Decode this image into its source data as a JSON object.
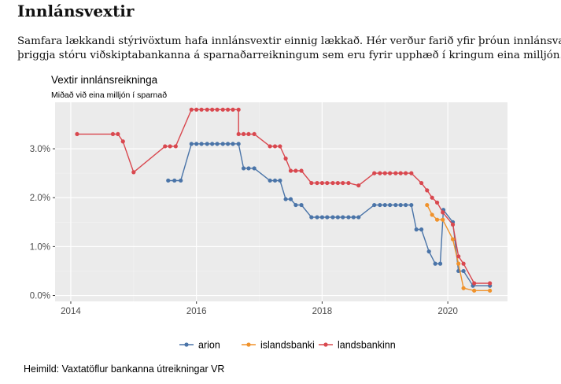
{
  "page": {
    "heading": "Innlánsvextir",
    "intro_line1": "Samfara lækkandi stýrivöxtum hafa innlánsvextir einnig lækkað.  Hér verður farið yfir þróun innlánsvaxta",
    "intro_line2": "þriggja stóru viðskiptabankanna á sparnaðarreikningum sem eru fyrir upphæð í kringum eina milljón.",
    "source": "Heimild: Vaxtatöflur bankanna útreikningar VR"
  },
  "colors": {
    "arion": "#4a74a8",
    "islandsbanki": "#f0922b",
    "landsbankinn": "#d9484f",
    "panel": "#ebebeb",
    "grid_major": "#ffffff",
    "grid_minor": "#f4f4f4"
  },
  "chart_data": {
    "type": "line",
    "title": "Vextir innlánsreikninga",
    "subtitle": "Miðað við eina milljón í sparnað",
    "xlabel": "",
    "ylabel": "",
    "xlim": [
      2013.75,
      2020.95
    ],
    "ylim": [
      -0.12,
      3.95
    ],
    "x_ticks": [
      2014,
      2016,
      2018,
      2020
    ],
    "x_tick_labels": [
      "2014",
      "2016",
      "2018",
      "2020"
    ],
    "y_ticks": [
      0,
      1,
      2,
      3
    ],
    "y_tick_labels": [
      "0.0%",
      "1.0%",
      "2.0%",
      "3.0%"
    ],
    "grid": true,
    "legend_position": "bottom",
    "series": [
      {
        "name": "arion",
        "color_key": "arion",
        "points": [
          [
            2015.55,
            2.35
          ],
          [
            2015.65,
            2.35
          ],
          [
            2015.75,
            2.35
          ],
          [
            2015.92,
            3.1
          ],
          [
            2016.0,
            3.1
          ],
          [
            2016.08,
            3.1
          ],
          [
            2016.17,
            3.1
          ],
          [
            2016.25,
            3.1
          ],
          [
            2016.33,
            3.1
          ],
          [
            2016.42,
            3.1
          ],
          [
            2016.5,
            3.1
          ],
          [
            2016.58,
            3.1
          ],
          [
            2016.67,
            3.1
          ],
          [
            2016.75,
            2.6
          ],
          [
            2016.83,
            2.6
          ],
          [
            2016.92,
            2.6
          ],
          [
            2017.17,
            2.35
          ],
          [
            2017.25,
            2.35
          ],
          [
            2017.33,
            2.35
          ],
          [
            2017.42,
            1.97
          ],
          [
            2017.5,
            1.97
          ],
          [
            2017.58,
            1.85
          ],
          [
            2017.67,
            1.85
          ],
          [
            2017.83,
            1.6
          ],
          [
            2017.92,
            1.6
          ],
          [
            2018.0,
            1.6
          ],
          [
            2018.08,
            1.6
          ],
          [
            2018.17,
            1.6
          ],
          [
            2018.25,
            1.6
          ],
          [
            2018.33,
            1.6
          ],
          [
            2018.42,
            1.6
          ],
          [
            2018.5,
            1.6
          ],
          [
            2018.58,
            1.6
          ],
          [
            2018.83,
            1.85
          ],
          [
            2018.92,
            1.85
          ],
          [
            2019.0,
            1.85
          ],
          [
            2019.08,
            1.85
          ],
          [
            2019.17,
            1.85
          ],
          [
            2019.25,
            1.85
          ],
          [
            2019.33,
            1.85
          ],
          [
            2019.42,
            1.85
          ],
          [
            2019.5,
            1.35
          ],
          [
            2019.58,
            1.35
          ],
          [
            2019.7,
            0.9
          ],
          [
            2019.8,
            0.65
          ],
          [
            2019.88,
            0.65
          ],
          [
            2019.93,
            1.75
          ],
          [
            2020.08,
            1.5
          ],
          [
            2020.17,
            0.5
          ],
          [
            2020.25,
            0.5
          ],
          [
            2020.4,
            0.2
          ],
          [
            2020.67,
            0.2
          ]
        ]
      },
      {
        "name": "islandsbanki",
        "color_key": "islandsbanki",
        "points": [
          [
            2019.67,
            1.85
          ],
          [
            2019.75,
            1.65
          ],
          [
            2019.83,
            1.55
          ],
          [
            2019.92,
            1.55
          ],
          [
            2020.08,
            1.15
          ],
          [
            2020.17,
            0.65
          ],
          [
            2020.25,
            0.15
          ],
          [
            2020.42,
            0.1
          ],
          [
            2020.67,
            0.1
          ]
        ]
      },
      {
        "name": "landsbankinn",
        "color_key": "landsbankinn",
        "points": [
          [
            2014.1,
            3.3
          ],
          [
            2014.67,
            3.3
          ],
          [
            2014.75,
            3.3
          ],
          [
            2014.83,
            3.15
          ],
          [
            2015.0,
            2.52
          ],
          [
            2015.5,
            3.05
          ],
          [
            2015.58,
            3.05
          ],
          [
            2015.67,
            3.05
          ],
          [
            2015.92,
            3.8
          ],
          [
            2016.0,
            3.8
          ],
          [
            2016.08,
            3.8
          ],
          [
            2016.17,
            3.8
          ],
          [
            2016.25,
            3.8
          ],
          [
            2016.33,
            3.8
          ],
          [
            2016.42,
            3.8
          ],
          [
            2016.5,
            3.8
          ],
          [
            2016.58,
            3.8
          ],
          [
            2016.67,
            3.8
          ],
          [
            2016.67,
            3.3
          ],
          [
            2016.75,
            3.3
          ],
          [
            2016.83,
            3.3
          ],
          [
            2016.92,
            3.3
          ],
          [
            2017.17,
            3.05
          ],
          [
            2017.25,
            3.05
          ],
          [
            2017.33,
            3.05
          ],
          [
            2017.42,
            2.8
          ],
          [
            2017.5,
            2.55
          ],
          [
            2017.58,
            2.55
          ],
          [
            2017.67,
            2.55
          ],
          [
            2017.83,
            2.3
          ],
          [
            2017.92,
            2.3
          ],
          [
            2018.0,
            2.3
          ],
          [
            2018.08,
            2.3
          ],
          [
            2018.17,
            2.3
          ],
          [
            2018.25,
            2.3
          ],
          [
            2018.33,
            2.3
          ],
          [
            2018.42,
            2.3
          ],
          [
            2018.58,
            2.25
          ],
          [
            2018.83,
            2.5
          ],
          [
            2018.92,
            2.5
          ],
          [
            2019.0,
            2.5
          ],
          [
            2019.08,
            2.5
          ],
          [
            2019.17,
            2.5
          ],
          [
            2019.25,
            2.5
          ],
          [
            2019.33,
            2.5
          ],
          [
            2019.42,
            2.5
          ],
          [
            2019.58,
            2.3
          ],
          [
            2019.67,
            2.15
          ],
          [
            2019.75,
            2.0
          ],
          [
            2019.83,
            1.9
          ],
          [
            2019.92,
            1.7
          ],
          [
            2020.08,
            1.45
          ],
          [
            2020.17,
            0.8
          ],
          [
            2020.25,
            0.65
          ],
          [
            2020.42,
            0.25
          ],
          [
            2020.67,
            0.25
          ]
        ]
      }
    ]
  }
}
